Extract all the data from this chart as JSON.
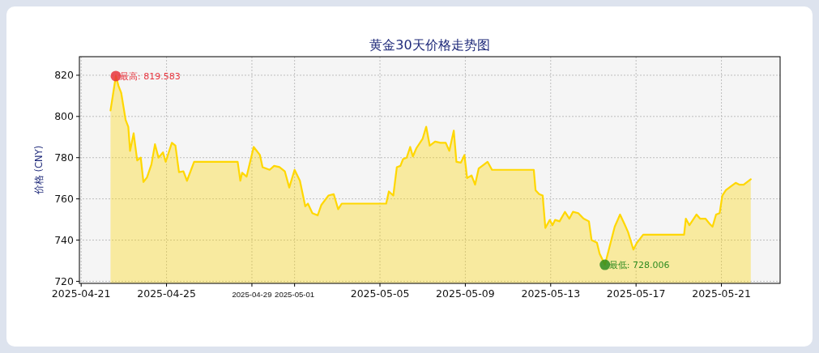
{
  "chart_data": {
    "type": "area",
    "title": "黄金30天价格走势图",
    "ylabel": "价格 (CNY)",
    "color": "#ffd700",
    "grid": true,
    "xlim": [
      "2025-04-20T22:00",
      "2025-05-23T18:00"
    ],
    "xticks": [
      "2025-04-21",
      "2025-04-25",
      "2025-04-29",
      "2025-05-01",
      "2025-05-05",
      "2025-05-09",
      "2025-05-13",
      "2025-05-17",
      "2025-05-21"
    ],
    "ylim": [
      719,
      829
    ],
    "yticks": [
      720,
      740,
      760,
      780,
      800,
      820
    ],
    "annotations": [
      {
        "text": "最高: 819.583",
        "x": "2025-04-22T15:00",
        "y": 819.583
      },
      {
        "text": "最低: 728.006",
        "x": "2025-05-15T13:00",
        "y": 728.006
      }
    ],
    "x": [
      "2025-04-22T09:00",
      "2025-04-22T15:00",
      "2025-04-22T18:00",
      "2025-04-22T21:00",
      "2025-04-23T02:00",
      "2025-04-23T05:00",
      "2025-04-23T07:00",
      "2025-04-23T11:00",
      "2025-04-23T15:00",
      "2025-04-23T19:00",
      "2025-04-23T22:00",
      "2025-04-24T02:00",
      "2025-04-24T07:00",
      "2025-04-24T11:00",
      "2025-04-24T15:00",
      "2025-04-24T20:00",
      "2025-04-24T23:00",
      "2025-04-25T06:00",
      "2025-04-25T10:00",
      "2025-04-25T14:00",
      "2025-04-25T19:00",
      "2025-04-25T23:00",
      "2025-04-26T07:00",
      "2025-04-28T08:00",
      "2025-04-28T11:00",
      "2025-04-28T13:00",
      "2025-04-28T18:00",
      "2025-04-29T02:00",
      "2025-04-29T09:00",
      "2025-04-29T12:00",
      "2025-04-29T20:00",
      "2025-04-30T01:00",
      "2025-04-30T07:00",
      "2025-04-30T13:00",
      "2025-04-30T18:00",
      "2025-05-01T00:00",
      "2025-05-01T06:00",
      "2025-05-01T12:00",
      "2025-05-01T15:00",
      "2025-05-01T20:00",
      "2025-05-02T02:00",
      "2025-05-02T06:00",
      "2025-05-02T14:00",
      "2025-05-02T20:00",
      "2025-05-03T01:00",
      "2025-05-03T05:00",
      "2025-05-05T07:00",
      "2025-05-05T10:00",
      "2025-05-05T15:00",
      "2025-05-05T19:00",
      "2025-05-05T23:00",
      "2025-05-06T02:00",
      "2025-05-06T06:00",
      "2025-05-06T10:00",
      "2025-05-06T13:00",
      "2025-05-06T17:00",
      "2025-05-07T00:00",
      "2025-05-07T04:00",
      "2025-05-07T08:00",
      "2025-05-07T14:00",
      "2025-05-07T20:00",
      "2025-05-08T02:00",
      "2025-05-08T06:00",
      "2025-05-08T11:00",
      "2025-05-08T14:00",
      "2025-05-08T19:00",
      "2025-05-08T23:00",
      "2025-05-09T02:00",
      "2025-05-09T07:00",
      "2025-05-09T11:00",
      "2025-05-09T15:00",
      "2025-05-09T19:00",
      "2025-05-10T01:00",
      "2025-05-10T06:00",
      "2025-05-12T05:00",
      "2025-05-12T07:00",
      "2025-05-12T11:00",
      "2025-05-12T15:00",
      "2025-05-12T18:00",
      "2025-05-12T23:00",
      "2025-05-13T02:00",
      "2025-05-13T05:00",
      "2025-05-13T10:00",
      "2025-05-13T16:00",
      "2025-05-13T21:00",
      "2025-05-14T01:00",
      "2025-05-14T07:00",
      "2025-05-14T13:00",
      "2025-05-14T19:00",
      "2025-05-14T22:00",
      "2025-05-15T04:00",
      "2025-05-15T07:00",
      "2025-05-15T13:00",
      "2025-05-15T17:00",
      "2025-05-16T00:00",
      "2025-05-16T06:00",
      "2025-05-16T11:00",
      "2025-05-16T15:00",
      "2025-05-16T21:00",
      "2025-05-17T01:00",
      "2025-05-17T08:00",
      "2025-05-19T06:00",
      "2025-05-19T08:00",
      "2025-05-19T12:00",
      "2025-05-19T20:00",
      "2025-05-20T00:00",
      "2025-05-20T06:00",
      "2025-05-20T11:00",
      "2025-05-20T14:00",
      "2025-05-20T18:00",
      "2025-05-20T22:00",
      "2025-05-21T01:00",
      "2025-05-21T05:00",
      "2025-05-21T11:00",
      "2025-05-21T16:00",
      "2025-05-21T20:00",
      "2025-05-22T01:00",
      "2025-05-22T09:00"
    ],
    "values": [
      802.9,
      819.583,
      814.8,
      811.5,
      798.3,
      795,
      783.3,
      791.8,
      778.7,
      780,
      768.2,
      770.4,
      776.7,
      786.5,
      780,
      782.6,
      778,
      787.2,
      785.8,
      773,
      773.4,
      768.8,
      778,
      778,
      768.8,
      772.7,
      770.8,
      785.2,
      781.3,
      775.4,
      774.1,
      776,
      775.4,
      773.4,
      765.5,
      774.1,
      768.8,
      756.4,
      757.7,
      753.1,
      752,
      757,
      761.6,
      762.3,
      755,
      757.7,
      757.7,
      763.6,
      761.6,
      775.4,
      776,
      779.3,
      780,
      785.2,
      780.6,
      784.6,
      789.2,
      795,
      785.8,
      787.8,
      787.2,
      787.2,
      783.3,
      793.1,
      778,
      777.6,
      781.3,
      770.1,
      771.4,
      766.9,
      774.7,
      776,
      778,
      774.1,
      774.1,
      764.2,
      762.3,
      761.6,
      745.9,
      749.8,
      747.2,
      749.8,
      749.1,
      753.7,
      750.4,
      753.7,
      753.1,
      750.4,
      749.1,
      740,
      738.7,
      733.4,
      728.006,
      734.7,
      746.5,
      752.4,
      747.8,
      743.9,
      735.4,
      738.7,
      742.6,
      742.6,
      750.4,
      747.2,
      752.4,
      750.4,
      750.4,
      747.8,
      746.5,
      752.4,
      753.1,
      761.6,
      764.2,
      766.2,
      767.8,
      766.9,
      766.9,
      769.5
    ]
  }
}
